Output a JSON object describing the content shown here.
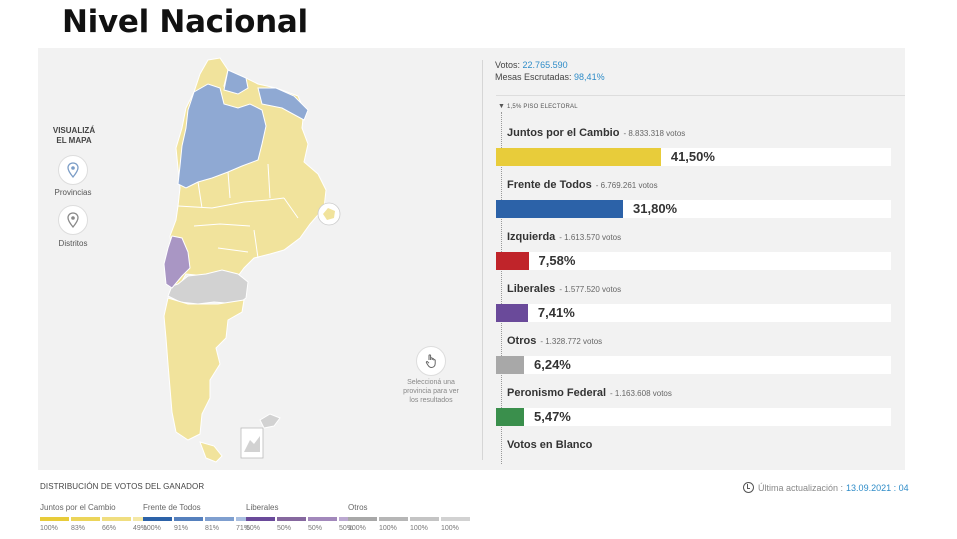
{
  "heading": "Nivel Nacional",
  "map_panel": {
    "visualiza_label": "VISUALIZÁ EL MAPA",
    "provincias_label": "Provincias",
    "distritos_label": "Distritos",
    "hint_text": "Seleccioná una provincia para ver los resultados",
    "icons": [
      "map-pin-icon",
      "map-pin-icon",
      "hand-pointer-icon"
    ]
  },
  "stats": {
    "votos_label": "Votos:",
    "votos_value": "22.765.590",
    "mesas_label": "Mesas Escrutadas:",
    "mesas_value": "98,41%"
  },
  "threshold_label": "1,5% PISO ELECTORAL",
  "parties": [
    {
      "name": "Juntos por el Cambio",
      "votes": "- 8.833.318 votos",
      "pct_label": "41,50%",
      "pct": 41.5,
      "color": "#e8cc3a"
    },
    {
      "name": "Frente de Todos",
      "votes": "- 6.769.261 votos",
      "pct_label": "31,80%",
      "pct": 31.8,
      "color": "#2c62a8"
    },
    {
      "name": "Izquierda",
      "votes": "- 1.613.570 votos",
      "pct_label": "7,58%",
      "pct": 7.58,
      "color": "#c0242a"
    },
    {
      "name": "Liberales",
      "votes": "- 1.577.520 votos",
      "pct_label": "7,41%",
      "pct": 7.41,
      "color": "#6a4a9a"
    },
    {
      "name": "Otros",
      "votes": "- 1.328.772 votos",
      "pct_label": "6,24%",
      "pct": 6.24,
      "color": "#a8a8a8"
    },
    {
      "name": "Peronismo Federal",
      "votes": "- 1.163.608 votos",
      "pct_label": "5,47%",
      "pct": 5.47,
      "color": "#3a8f4c"
    },
    {
      "name": "Votos en Blanco",
      "votes": "",
      "pct_label": "",
      "pct": 0,
      "color": "#ffffff"
    }
  ],
  "distribution": {
    "title": "DISTRIBUCIÓN DE VOTOS DEL GANADOR",
    "groups": [
      {
        "name": "Juntos por el Cambio",
        "colors": [
          "#e8cc3a",
          "#ecd55a",
          "#f0de80",
          "#f4e8a6"
        ],
        "labels": [
          "100%",
          "83%",
          "66%",
          "49%"
        ]
      },
      {
        "name": "Frente de Todos",
        "colors": [
          "#2c62a8",
          "#5580bd",
          "#7f9fcf",
          "#a8bee0"
        ],
        "labels": [
          "100%",
          "91%",
          "81%",
          "71%"
        ]
      },
      {
        "name": "Liberales",
        "colors": [
          "#6a4a9a",
          "#86689f",
          "#a288bb",
          "#bba8d0"
        ],
        "labels": [
          "50%",
          "50%",
          "50%",
          "50%"
        ]
      },
      {
        "name": "Otros",
        "colors": [
          "#a8a8a8",
          "#b6b6b6",
          "#c4c4c4",
          "#d2d2d2"
        ],
        "labels": [
          "100%",
          "100%",
          "100%",
          "100%"
        ]
      }
    ]
  },
  "update": {
    "label": "Última actualización :",
    "value": "13.09.2021 : 04"
  },
  "colors": {
    "yellow_region": "#f1e39c",
    "blue_region": "#8fa9d3",
    "purple_region": "#a996c4",
    "gray_region": "#d2d2d2",
    "accent": "#2e8cc8"
  }
}
